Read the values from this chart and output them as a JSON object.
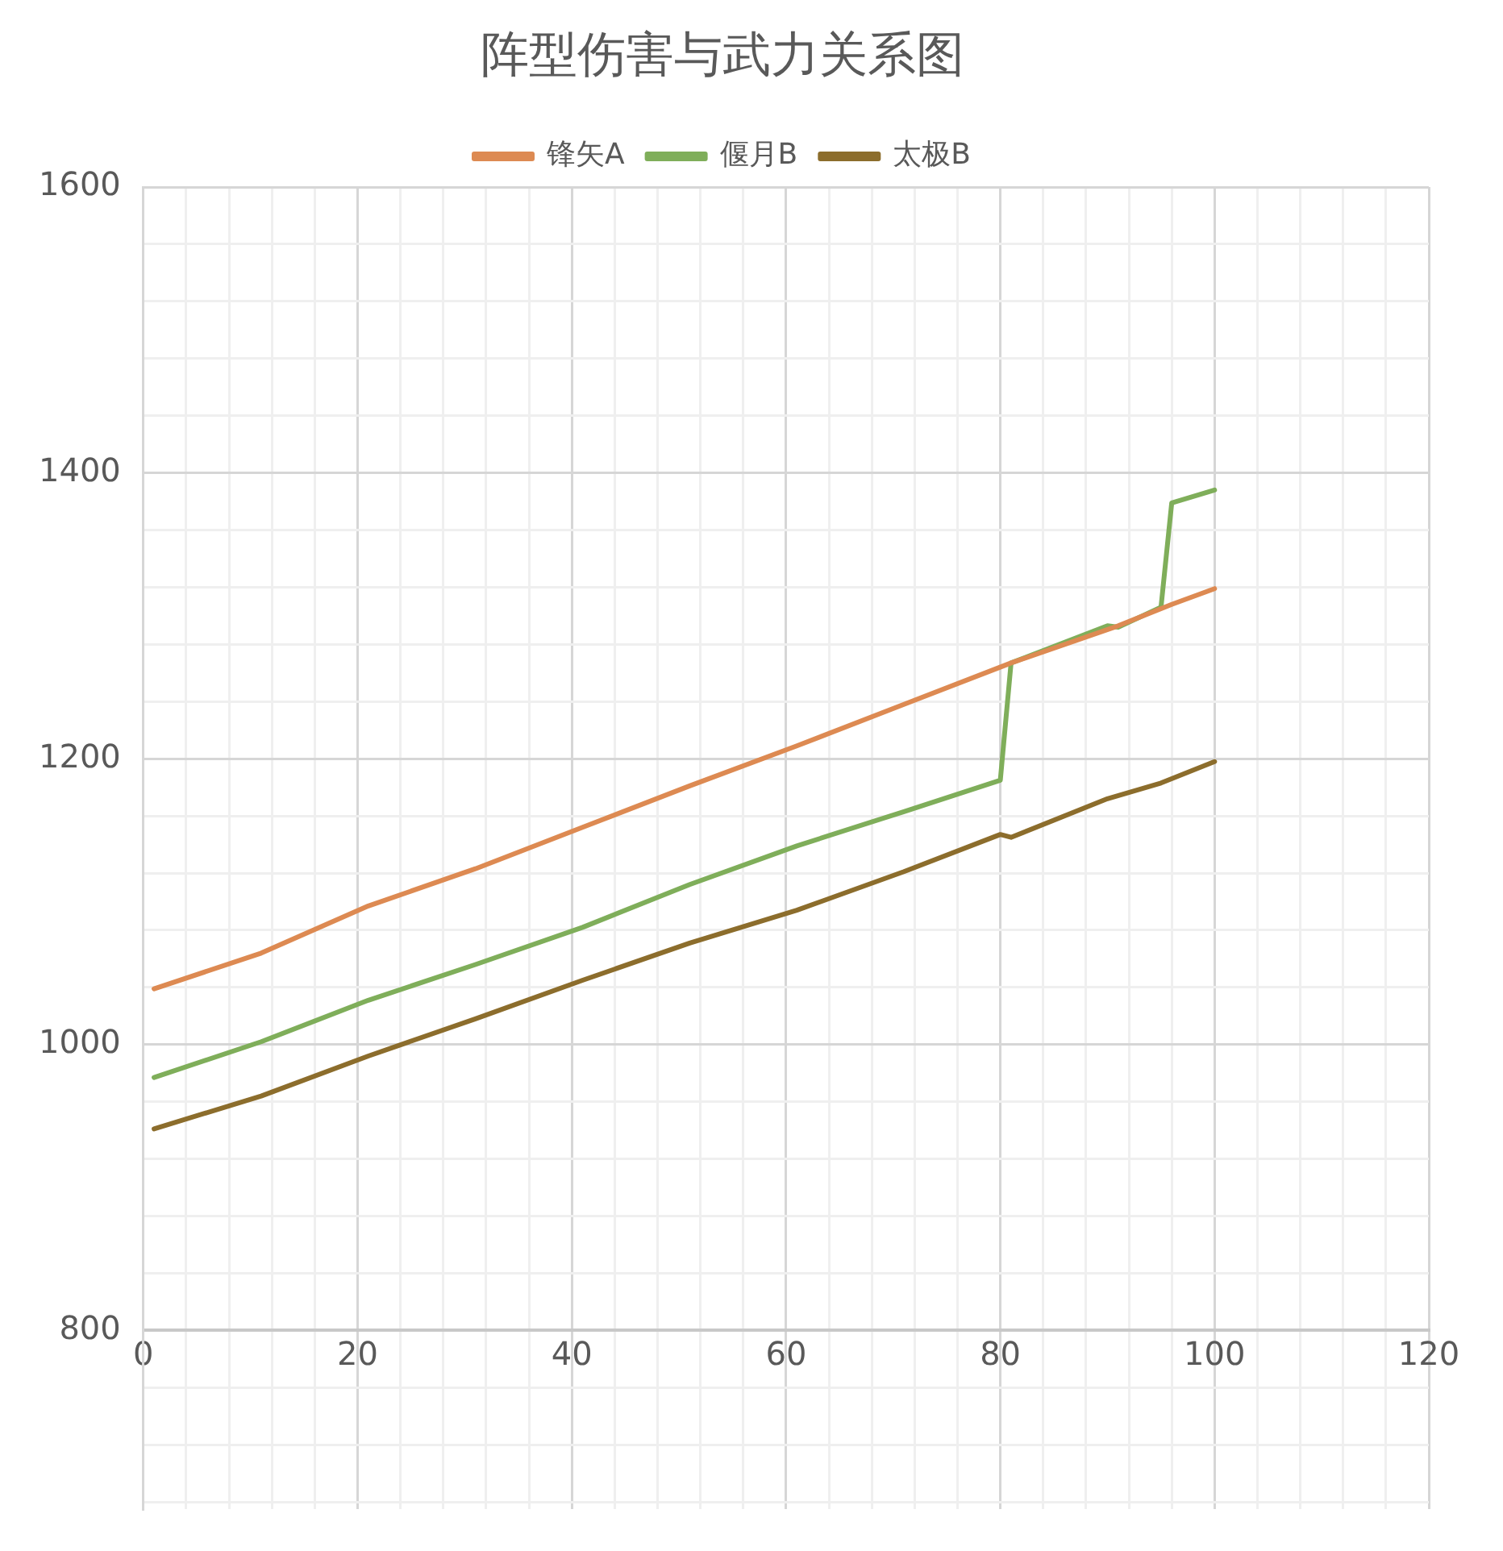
{
  "chart_data": {
    "type": "line",
    "title": "阵型伤害与武力关系图",
    "legend": "top",
    "grid": true,
    "marker": "none",
    "line_style": "solid",
    "xlim": [
      0,
      120
    ],
    "ylim": [
      675,
      1600
    ],
    "xticks": [
      0,
      {
        "value": 4,
        "label": null
      },
      {
        "value": 8,
        "label": null
      },
      {
        "value": 12,
        "label": null
      },
      {
        "value": 16,
        "label": null
      },
      20,
      {
        "value": 24,
        "label": null
      },
      {
        "value": 28,
        "label": null
      },
      {
        "value": 32,
        "label": null
      },
      {
        "value": 36,
        "label": null
      },
      40,
      {
        "value": 44,
        "label": null
      },
      {
        "value": 48,
        "label": null
      },
      {
        "value": 52,
        "label": null
      },
      {
        "value": 56,
        "label": null
      },
      60,
      {
        "value": 64,
        "label": null
      },
      {
        "value": 68,
        "label": null
      },
      {
        "value": 72,
        "label": null
      },
      {
        "value": 76,
        "label": null
      },
      80,
      {
        "value": 84,
        "label": null
      },
      {
        "value": 88,
        "label": null
      },
      {
        "value": 92,
        "label": null
      },
      {
        "value": 96,
        "label": null
      },
      100,
      {
        "value": 104,
        "label": null
      },
      {
        "value": 108,
        "label": null
      },
      {
        "value": 112,
        "label": null
      },
      {
        "value": 116,
        "label": null
      },
      120
    ],
    "yticks": [
      {
        "value": 680,
        "label": null
      },
      {
        "value": 720,
        "label": null
      },
      {
        "value": 760,
        "label": null
      },
      800,
      {
        "value": 840,
        "label": null
      },
      {
        "value": 880,
        "label": null
      },
      {
        "value": 920,
        "label": null
      },
      {
        "value": 960,
        "label": null
      },
      1000,
      {
        "value": 1040,
        "label": null
      },
      {
        "value": 1080,
        "label": null
      },
      {
        "value": 1120,
        "label": null
      },
      {
        "value": 1160,
        "label": null
      },
      1200,
      {
        "value": 1240,
        "label": null
      },
      {
        "value": 1280,
        "label": null
      },
      {
        "value": 1320,
        "label": null
      },
      {
        "value": 1360,
        "label": null
      },
      1400,
      {
        "value": 1440,
        "label": null
      },
      {
        "value": 1480,
        "label": null
      },
      {
        "value": 1520,
        "label": null
      },
      {
        "value": 1560,
        "label": null
      },
      1600
    ],
    "series": [
      {
        "name": "锋矢A",
        "color": "#dd8a52",
        "x": [
          1,
          11,
          21,
          31,
          41,
          51,
          61,
          71,
          81,
          91,
          96,
          100
        ],
        "values": [
          1039,
          1064,
          1097,
          1123,
          1152,
          1181,
          1209,
          1238,
          1267,
          1293,
          1308,
          1319
        ]
      },
      {
        "name": "偃月B",
        "color": "#7fae5a",
        "x": [
          1,
          11,
          21,
          31,
          41,
          51,
          61,
          71,
          80,
          81,
          90,
          91,
          95,
          96,
          100
        ],
        "values": [
          977,
          1002,
          1031,
          1056,
          1082,
          1112,
          1139,
          1163,
          1185,
          1267,
          1293,
          1292,
          1306,
          1379,
          1388
        ]
      },
      {
        "name": "太极B",
        "color": "#8c6d2c",
        "x": [
          1,
          11,
          21,
          31,
          41,
          51,
          61,
          71,
          80,
          81,
          90,
          95,
          100
        ],
        "values": [
          941,
          964,
          992,
          1018,
          1045,
          1071,
          1094,
          1121,
          1147,
          1145,
          1172,
          1183,
          1198
        ]
      }
    ]
  }
}
